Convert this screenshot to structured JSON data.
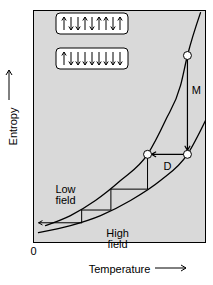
{
  "chart_data": {
    "type": "line",
    "xlabel": "Temperature",
    "ylabel": "Entropy",
    "xlim": [
      0,
      10
    ],
    "ylim": [
      0,
      10
    ],
    "xticks": [
      0
    ],
    "yticks": [],
    "tick_labels": "x",
    "grid": false,
    "series": [
      {
        "name": "Low field",
        "color": "#000000",
        "x": [
          0.7,
          2.15,
          3.6,
          5.06,
          6.63,
          7.67,
          8.55,
          8.95,
          9.71
        ],
        "values": [
          0.73,
          1.16,
          1.81,
          2.67,
          3.8,
          5.26,
          6.77,
          8.06,
          9.91
        ]
      },
      {
        "name": "High field",
        "color": "#000000",
        "x": [
          0.29,
          2.15,
          3.9,
          5.64,
          7.38,
          8.95,
          10
        ],
        "values": [
          0.43,
          0.73,
          1.16,
          1.81,
          2.67,
          3.8,
          5.26
        ]
      }
    ],
    "cycle": {
      "x": [
        8.95,
        8.95,
        6.63,
        6.63,
        4.5,
        4.5,
        2.8,
        2.8,
        0.3
      ],
      "y": [
        8.06,
        3.8,
        3.8,
        2.3,
        2.3,
        1.4,
        1.4,
        0.85,
        0.85
      ]
    },
    "annotations": [
      {
        "text": "M"
      },
      {
        "text": "D"
      }
    ]
  }
}
